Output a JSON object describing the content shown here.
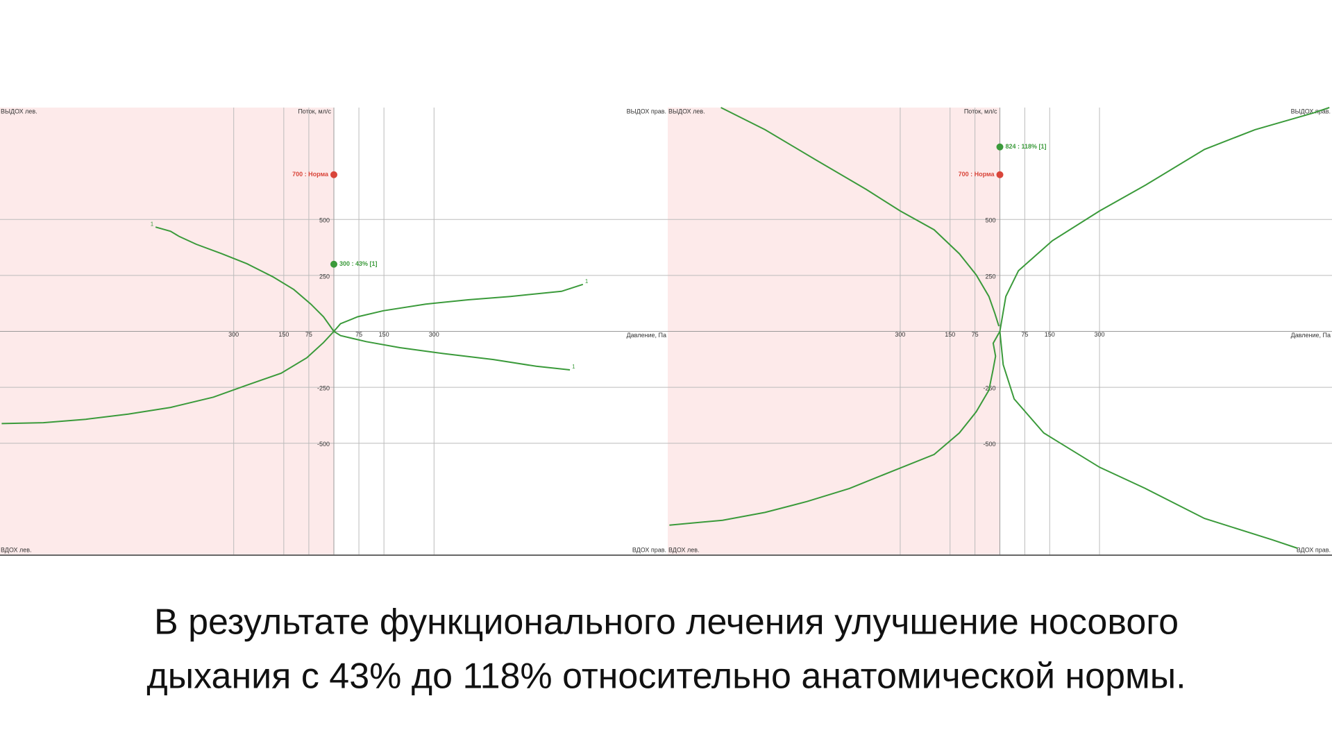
{
  "chart_data": [
    {
      "type": "line",
      "x_label": "Давление, Па",
      "y_label": "Поток, мл/с",
      "corner_labels": {
        "top_left": "ВЫДОХ лев.",
        "top_right": "ВЫДОХ прав.",
        "bottom_left": "ВДОХ лев.",
        "bottom_right": "ВДОХ прав."
      },
      "xlim": [
        -1000,
        1000
      ],
      "ylim": [
        -1000,
        1000
      ],
      "xticks": [
        {
          "value": -300,
          "label": "300"
        },
        {
          "value": -150,
          "label": "150"
        },
        {
          "value": -75,
          "label": "75"
        },
        75,
        150,
        300
      ],
      "yticks": [
        -500,
        -250,
        250,
        500
      ],
      "grid": true,
      "shade_color": "#fdeaea",
      "norm": {
        "value": 700,
        "label": "700 : Норма",
        "color": "#d9453a"
      },
      "result": {
        "value": 300,
        "label": "300 : 43% [1]",
        "color": "#3a9a3a"
      },
      "series": [
        {
          "color": "#3a9a3a",
          "label": "1",
          "x": [
            0,
            -31,
            -69,
            -120,
            -183,
            -260,
            -336,
            -412,
            -463,
            -489,
            -534
          ],
          "values": [
            0,
            65,
            122,
            187,
            244,
            302,
            347,
            389,
            424,
            447,
            466
          ]
        },
        {
          "color": "#3a9a3a",
          "x": [
            0,
            -31,
            -81,
            -158,
            -260,
            -361,
            -489,
            -616,
            -743,
            -870,
            -995
          ],
          "values": [
            0,
            -50,
            -118,
            -187,
            -240,
            -294,
            -340,
            -370,
            -393,
            -408,
            -412
          ]
        },
        {
          "color": "#3a9a3a",
          "label": "1",
          "x": [
            0,
            20,
            71,
            148,
            275,
            402,
            529,
            682,
            746
          ],
          "values": [
            0,
            34,
            65,
            92,
            122,
            141,
            156,
            179,
            210
          ]
        },
        {
          "color": "#3a9a3a",
          "label": "1",
          "x": [
            0,
            20,
            97,
            198,
            326,
            478,
            606,
            707
          ],
          "values": [
            0,
            -19,
            -46,
            -73,
            -99,
            -126,
            -156,
            -172
          ]
        }
      ]
    },
    {
      "type": "line",
      "x_label": "Давление, Па",
      "y_label": "Поток, мл/с",
      "corner_labels": {
        "top_left": "ВЫДОХ лев.",
        "top_right": "ВЫДОХ прав.",
        "bottom_left": "ВДОХ лев.",
        "bottom_right": "ВДОХ прав."
      },
      "xlim": [
        -1000,
        1000
      ],
      "ylim": [
        -1000,
        1000
      ],
      "xticks": [
        {
          "value": -300,
          "label": "300"
        },
        {
          "value": -150,
          "label": "150"
        },
        {
          "value": -75,
          "label": "75"
        },
        75,
        150,
        300
      ],
      "yticks": [
        -500,
        -250,
        250,
        500
      ],
      "grid": true,
      "shade_color": "#fdeaea",
      "norm": {
        "value": 700,
        "label": "700 : Норма",
        "color": "#d9453a"
      },
      "result": {
        "value": 824,
        "label": "824 : 118% [1]",
        "color": "#3a9a3a"
      },
      "series": [
        {
          "color": "#3a9a3a",
          "x": [
            -3,
            -15,
            -33,
            -71,
            -122,
            -198,
            -300,
            -402,
            -555,
            -707,
            -840
          ],
          "values": [
            23,
            80,
            156,
            252,
            347,
            454,
            538,
            634,
            767,
            901,
            1000
          ]
        },
        {
          "color": "#3a9a3a",
          "x": [
            0,
            -20,
            -13,
            -20,
            -33,
            -71,
            -122,
            -198,
            -326,
            -453,
            -580,
            -707,
            -835,
            -995
          ],
          "values": [
            0,
            -53,
            -111,
            -168,
            -263,
            -359,
            -454,
            -550,
            -626,
            -702,
            -760,
            -809,
            -844,
            -866
          ]
        },
        {
          "color": "#3a9a3a",
          "x": [
            0,
            18,
            56,
            158,
            300,
            438,
            616,
            768,
            946,
            992
          ],
          "values": [
            0,
            156,
            271,
            405,
            538,
            653,
            813,
            901,
            977,
            1000
          ]
        },
        {
          "color": "#3a9a3a",
          "x": [
            0,
            10,
            43,
            132,
            300,
            438,
            616,
            819,
            896
          ],
          "values": [
            0,
            -149,
            -302,
            -454,
            -607,
            -702,
            -836,
            -931,
            -969
          ]
        }
      ]
    }
  ],
  "caption": [
    "В результате функционального лечения улучшение носового",
    "дыхания с 43% до 118% относительно анатомической нормы."
  ]
}
